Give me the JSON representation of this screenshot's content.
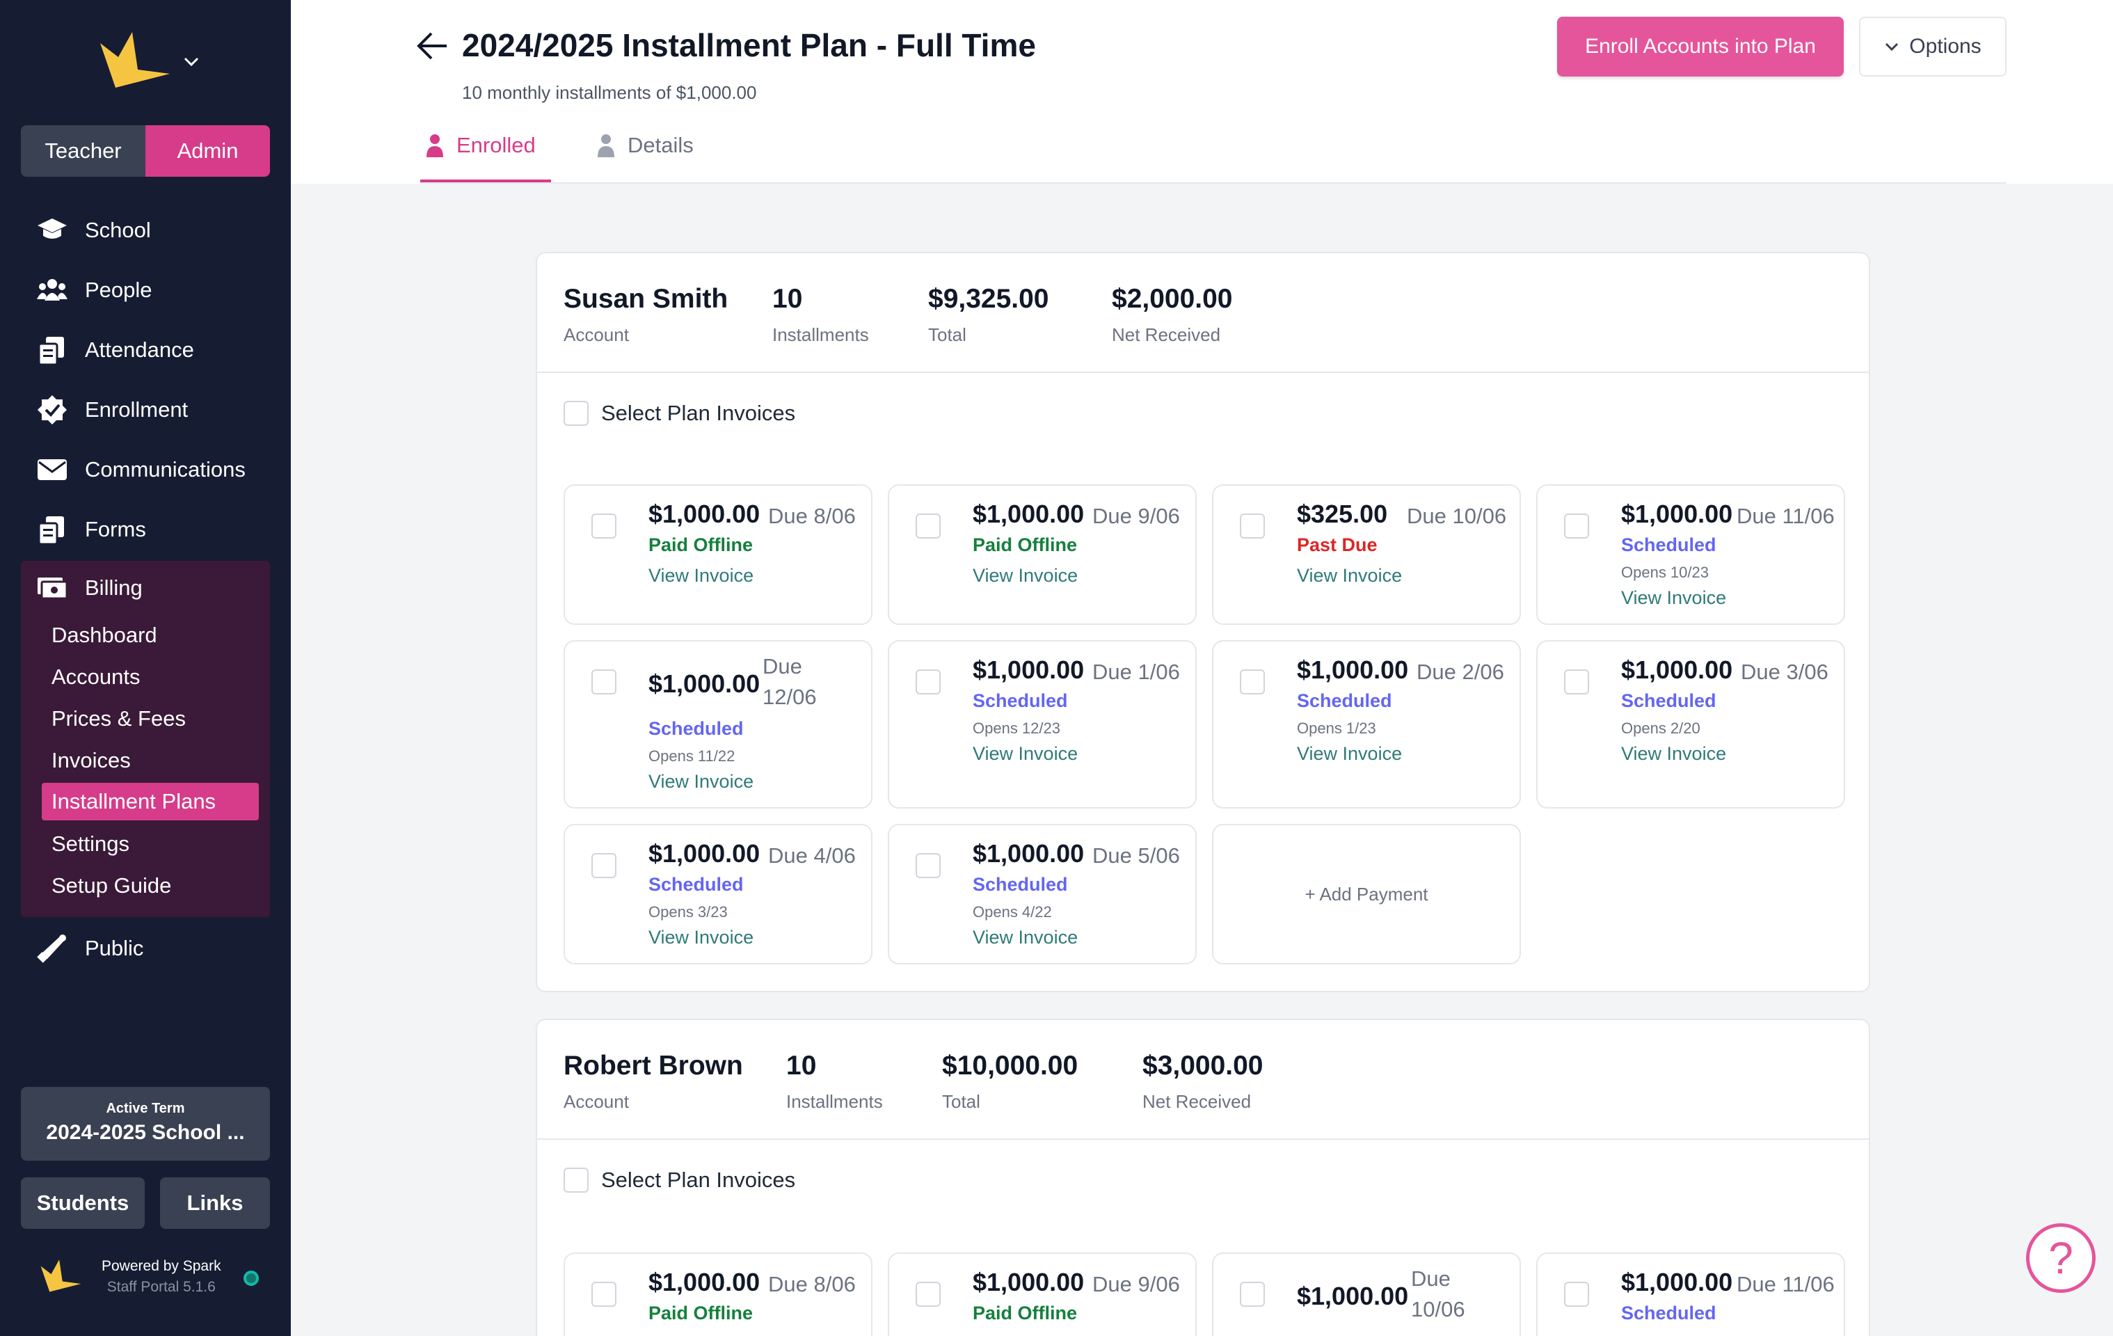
{
  "sidebar": {
    "roles": {
      "teacher": "Teacher",
      "admin": "Admin"
    },
    "nav": [
      {
        "label": "School",
        "icon": "graduation-cap-icon"
      },
      {
        "label": "People",
        "icon": "people-icon"
      },
      {
        "label": "Attendance",
        "icon": "clipboard-icon"
      },
      {
        "label": "Enrollment",
        "icon": "check-badge-icon"
      },
      {
        "label": "Communications",
        "icon": "envelope-icon"
      },
      {
        "label": "Forms",
        "icon": "clipboard-icon"
      },
      {
        "label": "Billing",
        "icon": "money-icon"
      }
    ],
    "billing_sub": [
      "Dashboard",
      "Accounts",
      "Prices & Fees",
      "Invoices",
      "Installment Plans",
      "Settings",
      "Setup Guide"
    ],
    "public": "Public",
    "term": {
      "label": "Active Term",
      "value": "2024-2025 School ..."
    },
    "students": "Students",
    "links": "Links",
    "powered": "Powered by Spark",
    "version": "Staff Portal 5.1.6"
  },
  "header": {
    "title": "2024/2025 Installment Plan - Full Time",
    "subtitle": "10 monthly installments of $1,000.00",
    "enroll_button": "Enroll Accounts into Plan",
    "options_button": "Options",
    "tabs": [
      "Enrolled",
      "Details"
    ]
  },
  "plans": [
    {
      "name": "Susan Smith",
      "name_label": "Account",
      "installments": "10",
      "installments_label": "Installments",
      "total": "$9,325.00",
      "total_label": "Total",
      "net": "$2,000.00",
      "net_label": "Net Received",
      "select_label": "Select Plan Invoices",
      "invoices": [
        {
          "amount": "$1,000.00",
          "due": "Due 8/06",
          "status": "Paid Offline",
          "opens": "",
          "view": "View Invoice"
        },
        {
          "amount": "$1,000.00",
          "due": "Due 9/06",
          "status": "Paid Offline",
          "opens": "",
          "view": "View Invoice"
        },
        {
          "amount": "$325.00",
          "due": "Due 10/06",
          "status": "Past Due",
          "opens": "",
          "view": "View Invoice"
        },
        {
          "amount": "$1,000.00",
          "due": "Due 11/06",
          "status": "Scheduled",
          "opens": "Opens 10/23",
          "view": "View Invoice"
        },
        {
          "amount": "$1,000.00",
          "due": "Due 12/06",
          "status": "Scheduled",
          "opens": "Opens 11/22",
          "view": "View Invoice"
        },
        {
          "amount": "$1,000.00",
          "due": "Due 1/06",
          "status": "Scheduled",
          "opens": "Opens 12/23",
          "view": "View Invoice"
        },
        {
          "amount": "$1,000.00",
          "due": "Due 2/06",
          "status": "Scheduled",
          "opens": "Opens 1/23",
          "view": "View Invoice"
        },
        {
          "amount": "$1,000.00",
          "due": "Due 3/06",
          "status": "Scheduled",
          "opens": "Opens 2/20",
          "view": "View Invoice"
        },
        {
          "amount": "$1,000.00",
          "due": "Due 4/06",
          "status": "Scheduled",
          "opens": "Opens 3/23",
          "view": "View Invoice"
        },
        {
          "amount": "$1,000.00",
          "due": "Due 5/06",
          "status": "Scheduled",
          "opens": "Opens 4/22",
          "view": "View Invoice"
        }
      ],
      "add_payment": "+ Add Payment"
    },
    {
      "name": "Robert Brown",
      "name_label": "Account",
      "installments": "10",
      "installments_label": "Installments",
      "total": "$10,000.00",
      "total_label": "Total",
      "net": "$3,000.00",
      "net_label": "Net Received",
      "select_label": "Select Plan Invoices",
      "invoices": [
        {
          "amount": "$1,000.00",
          "due": "Due 8/06",
          "status": "Paid Offline"
        },
        {
          "amount": "$1,000.00",
          "due": "Due 9/06",
          "status": "Paid Offline"
        },
        {
          "amount": "$1,000.00",
          "due": "Due 10/06",
          "status": ""
        },
        {
          "amount": "$1,000.00",
          "due": "Due 11/06",
          "status": "Scheduled"
        }
      ]
    }
  ],
  "help": "?",
  "colors": {
    "accent": "#d63c8a",
    "sidebar": "#161d33",
    "paid": "#15803d",
    "past_due": "#dc2626",
    "scheduled": "#6366f1",
    "link": "#2f7a78"
  }
}
